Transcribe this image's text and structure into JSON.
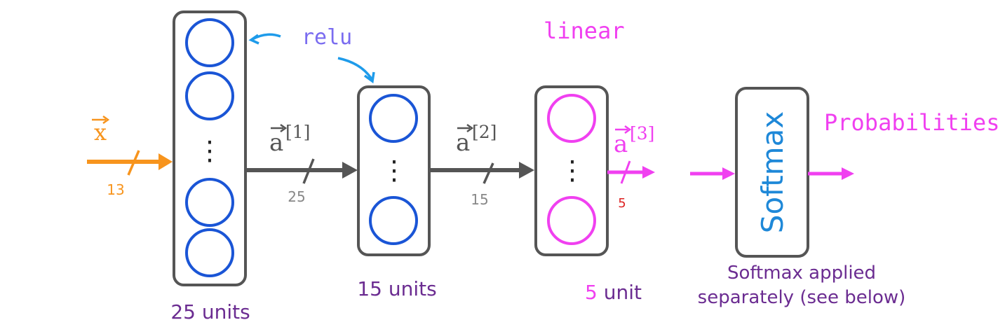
{
  "input": {
    "symbol": "x",
    "dimension": "13",
    "color": "#f7941d"
  },
  "layers": [
    {
      "units_label": "25 units",
      "dimension": "25",
      "vector": "a",
      "superscript": "[1]"
    },
    {
      "units_label": "15 units",
      "dimension": "15",
      "vector": "a",
      "superscript": "[2]"
    },
    {
      "units_label": "5 unit",
      "dimension": "5",
      "vector": "a",
      "superscript": "[3]"
    }
  ],
  "activations": {
    "relu": "relu",
    "linear": "linear"
  },
  "softmax": {
    "box_label": "Softmax",
    "caption_line1": "Softmax applied",
    "caption_line2": "separately (see below)",
    "output_label": "Probabilities"
  },
  "ellipsis": "⋮",
  "colors": {
    "unit_blue": "#1a55d6",
    "unit_magenta": "#f040f0",
    "box_border": "#555555",
    "arrow_gray": "#555555",
    "dim_gray": "#888888",
    "caption_purple": "#6b2c91",
    "relu_purple": "#7a6cf0",
    "magenta": "#f040f0",
    "softmax_blue": "#1e88d8",
    "dim_red": "#dd2222",
    "relu_arrow": "#1e9bea"
  }
}
